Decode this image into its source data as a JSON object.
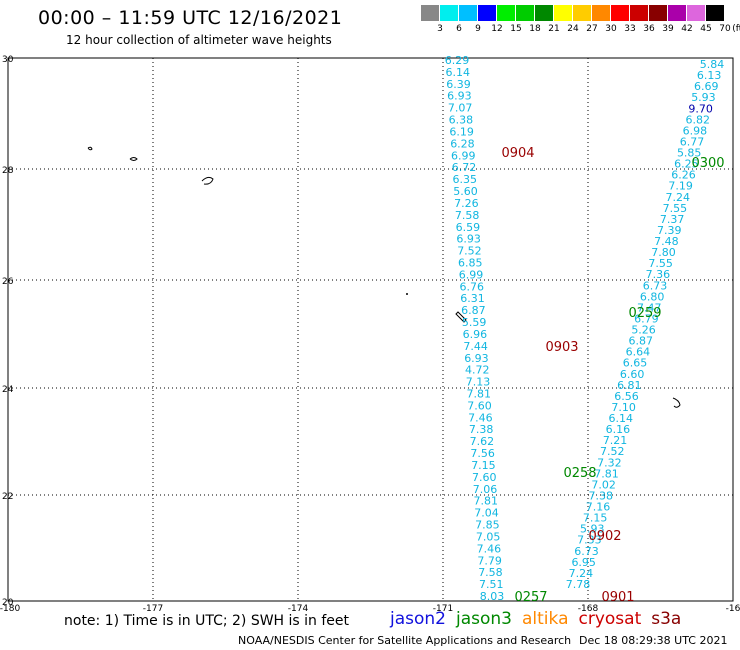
{
  "header": {
    "title": "00:00 – 11:59 UTC 12/16/2021",
    "subtitle": "12 hour collection of altimeter wave heights"
  },
  "legend": {
    "colors": [
      "#888888",
      "#00eeee",
      "#00bfff",
      "#0000ff",
      "#00ee00",
      "#00cc00",
      "#008800",
      "#ffff00",
      "#ffcc00",
      "#ff8800",
      "#ff0000",
      "#cc0000",
      "#880000",
      "#aa00aa",
      "#dd66dd",
      "#000000"
    ],
    "labels": [
      "3",
      "6",
      "9",
      "12",
      "15",
      "18",
      "21",
      "24",
      "27",
      "30",
      "33",
      "36",
      "39",
      "42",
      "45",
      "70"
    ],
    "unit": "(ft)"
  },
  "axes": {
    "lon_ticks": [
      "-180",
      "-177",
      "-174",
      "-171",
      "-168",
      "-16"
    ],
    "lat_ticks": [
      "30",
      "28",
      "26",
      "24",
      "22",
      "20"
    ]
  },
  "tracks": {
    "west": [
      "6.29",
      "6.14",
      "6.39",
      "6.93",
      "7.07",
      "6.38",
      "6.19",
      "6.28",
      "6.99",
      "6.72",
      "6.35",
      "5.60",
      "7.26",
      "7.58",
      "6.59",
      "6.93",
      "7.52",
      "6.85",
      "6.99",
      "6.76",
      "6.31",
      "6.87",
      "5.59",
      "6.96",
      "7.44",
      "6.93",
      "4.72",
      "7.13",
      "7.81",
      "7.60",
      "7.46",
      "7.38",
      "7.62",
      "7.56",
      "7.15",
      "7.60",
      "7.06",
      "7.81",
      "7.04",
      "7.85",
      "7.05",
      "7.46",
      "7.79",
      "7.58",
      "7.51",
      "8.03"
    ],
    "east": [
      "5.84",
      "6.13",
      "6.69",
      "5.93",
      "9.70",
      "6.82",
      "6.98",
      "6.77",
      "5.85",
      "6.25",
      "6.26",
      "7.19",
      "7.24",
      "7.55",
      "7.37",
      "7.39",
      "7.48",
      "7.80",
      "7.55",
      "7.36",
      "6.73",
      "6.80",
      "7.47",
      "6.79",
      "5.26",
      "6.87",
      "6.64",
      "6.65",
      "6.60",
      "6.81",
      "6.56",
      "7.10",
      "6.14",
      "6.16",
      "7.21",
      "7.52",
      "7.32",
      "7.81",
      "7.02",
      "7.38",
      "7.16",
      "7.15",
      "5.93",
      "7.33",
      "6.73",
      "6.95",
      "7.24",
      "7.78"
    ]
  },
  "time_labels": [
    {
      "text": "0904",
      "sat": "cryosat"
    },
    {
      "text": "0300",
      "sat": "jason3"
    },
    {
      "text": "0259",
      "sat": "jason3"
    },
    {
      "text": "0903",
      "sat": "cryosat"
    },
    {
      "text": "0258",
      "sat": "jason3"
    },
    {
      "text": "0902",
      "sat": "cryosat"
    },
    {
      "text": "0257",
      "sat": "jason3"
    },
    {
      "text": "0901",
      "sat": "cryosat"
    }
  ],
  "colors": {
    "track_value": "#11b6e0",
    "track_value_high": "#0000aa",
    "jason2": "#1111dd",
    "jason3": "#008800",
    "altika": "#ff8800",
    "cryosat": "#cc0000",
    "s3a": "#880000",
    "cryosat_time": "#990000",
    "jason3_time": "#008800"
  },
  "footer": {
    "note": "note: 1) Time is in UTC; 2) SWH is in feet",
    "satellites": [
      "jason2",
      "jason3",
      "altika",
      "cryosat",
      "s3a"
    ],
    "credit": "NOAA/NESDIS Center for Satellite Applications and Research",
    "timestamp": "Dec 18 08:29:38 UTC 2021"
  }
}
